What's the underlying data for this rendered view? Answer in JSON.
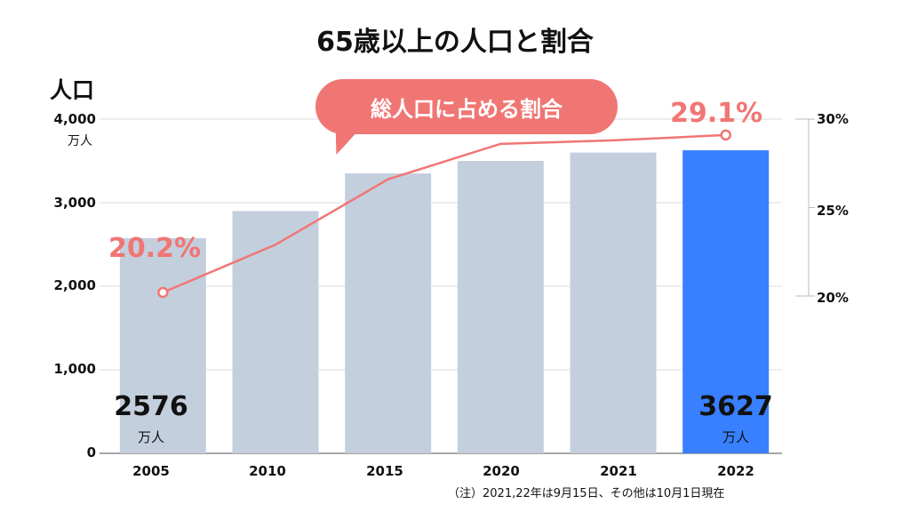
{
  "chart_data": {
    "type": "bar",
    "title": "65歳以上の人口と割合",
    "ylabel": "人口",
    "y_unit": "万人",
    "categories": [
      "2005",
      "2010",
      "2015",
      "2020",
      "2021",
      "2022"
    ],
    "series": [
      {
        "values": [
          2576,
          2900,
          3350,
          3500,
          3600,
          3627
        ],
        "color": "#c4cfde",
        "highlight_color": "#3880ff",
        "highlight_index": 5
      },
      {
        "name": "総人口に占める割合",
        "type": "line",
        "axis": "right",
        "values": [
          20.2,
          22.9,
          26.6,
          28.6,
          28.8,
          29.1
        ],
        "color": "#f07674"
      }
    ],
    "ylim": [
      0,
      4000
    ],
    "yticks": [
      "0",
      "1,000",
      "2,000",
      "3,000",
      "4,000"
    ],
    "y2lim": [
      20,
      30
    ],
    "y2ticks": [
      "20%",
      "25%",
      "30%"
    ],
    "data_labels": {
      "first_value": "2576",
      "last_value": "3627",
      "first_pct": "20.2%",
      "last_pct": "29.1%"
    },
    "grid": true,
    "note": "（注）2021,22年は9月15日、その他は10月1日現在"
  }
}
